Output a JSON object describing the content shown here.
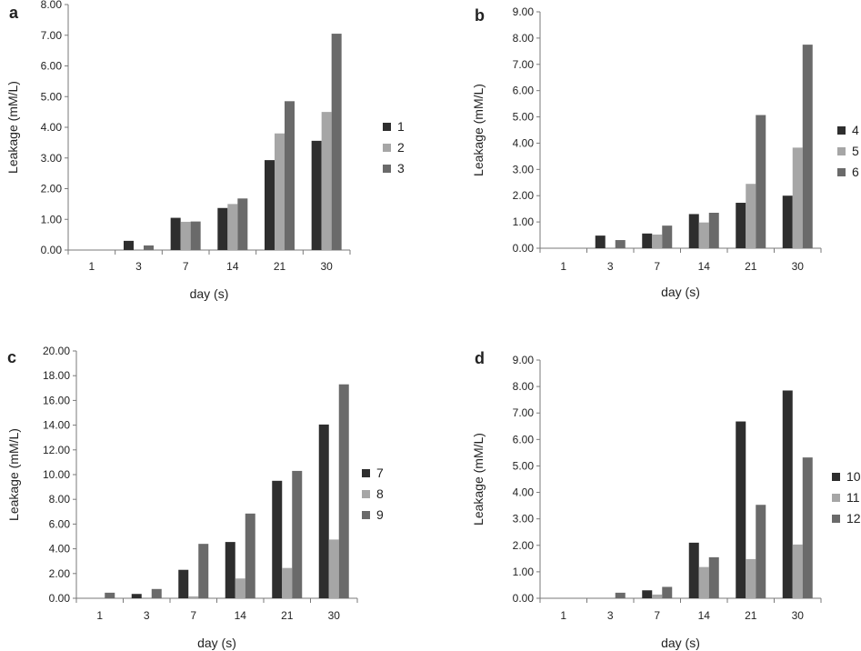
{
  "chart_data": [
    {
      "panel_label": "a",
      "type": "bar",
      "categories": [
        "1",
        "3",
        "7",
        "14",
        "21",
        "30"
      ],
      "series": [
        {
          "name": "1",
          "color": "#2e2e2e",
          "values": [
            0,
            0.3,
            1.05,
            1.37,
            2.93,
            3.56
          ]
        },
        {
          "name": "2",
          "color": "#a6a6a6",
          "values": [
            0,
            0,
            0.92,
            1.5,
            3.8,
            4.5
          ]
        },
        {
          "name": "3",
          "color": "#6a6a6a",
          "values": [
            0,
            0.15,
            0.93,
            1.68,
            4.85,
            7.05
          ]
        }
      ],
      "xlabel": "day (s)",
      "ylabel": "Leakage (mM/L)",
      "ylim": [
        0,
        8
      ],
      "yticks": [
        "0.00",
        "1.00",
        "2.00",
        "3.00",
        "4.00",
        "5.00",
        "6.00",
        "7.00",
        "8.00"
      ],
      "grid": false,
      "legend_position": "right"
    },
    {
      "panel_label": "b",
      "type": "bar",
      "categories": [
        "1",
        "3",
        "7",
        "14",
        "21",
        "30"
      ],
      "series": [
        {
          "name": "4",
          "color": "#2e2e2e",
          "values": [
            0,
            0.48,
            0.56,
            1.3,
            1.73,
            2.0
          ]
        },
        {
          "name": "5",
          "color": "#a6a6a6",
          "values": [
            0,
            0,
            0.52,
            0.98,
            2.45,
            3.83
          ]
        },
        {
          "name": "6",
          "color": "#6a6a6a",
          "values": [
            0,
            0.31,
            0.86,
            1.35,
            5.07,
            7.75
          ]
        }
      ],
      "xlabel": "day (s)",
      "ylabel": "Leakage (mM/L)",
      "ylim": [
        0,
        9
      ],
      "yticks": [
        "0.00",
        "1.00",
        "2.00",
        "3.00",
        "4.00",
        "5.00",
        "6.00",
        "7.00",
        "8.00",
        "9.00"
      ],
      "grid": false,
      "legend_position": "right"
    },
    {
      "panel_label": "c",
      "type": "bar",
      "categories": [
        "1",
        "3",
        "7",
        "14",
        "21",
        "30"
      ],
      "series": [
        {
          "name": "7",
          "color": "#2e2e2e",
          "values": [
            0,
            0.35,
            2.3,
            4.55,
            9.5,
            14.05
          ]
        },
        {
          "name": "8",
          "color": "#a6a6a6",
          "values": [
            0,
            0,
            0.15,
            1.6,
            2.45,
            4.75
          ]
        },
        {
          "name": "9",
          "color": "#6a6a6a",
          "values": [
            0.45,
            0.75,
            4.4,
            6.85,
            10.3,
            17.3
          ]
        }
      ],
      "xlabel": "day (s)",
      "ylabel": "Leakage (mM/L)",
      "ylim": [
        0,
        20
      ],
      "yticks": [
        "0.00",
        "2.00",
        "4.00",
        "6.00",
        "8.00",
        "10.00",
        "12.00",
        "14.00",
        "16.00",
        "18.00",
        "20.00"
      ],
      "grid": false,
      "legend_position": "right"
    },
    {
      "panel_label": "d",
      "type": "bar",
      "categories": [
        "1",
        "3",
        "7",
        "14",
        "21",
        "30"
      ],
      "series": [
        {
          "name": "10",
          "color": "#2e2e2e",
          "values": [
            0,
            0,
            0.3,
            2.1,
            6.68,
            7.85
          ]
        },
        {
          "name": "11",
          "color": "#a6a6a6",
          "values": [
            0,
            0,
            0.14,
            1.18,
            1.48,
            2.03
          ]
        },
        {
          "name": "12",
          "color": "#6a6a6a",
          "values": [
            0,
            0.21,
            0.43,
            1.55,
            3.53,
            5.32
          ]
        }
      ],
      "xlabel": "day (s)",
      "ylabel": "Leakage (mM/L)",
      "ylim": [
        0,
        9
      ],
      "yticks": [
        "0.00",
        "1.00",
        "2.00",
        "3.00",
        "4.00",
        "5.00",
        "6.00",
        "7.00",
        "8.00",
        "9.00"
      ],
      "grid": false,
      "legend_position": "right"
    }
  ]
}
